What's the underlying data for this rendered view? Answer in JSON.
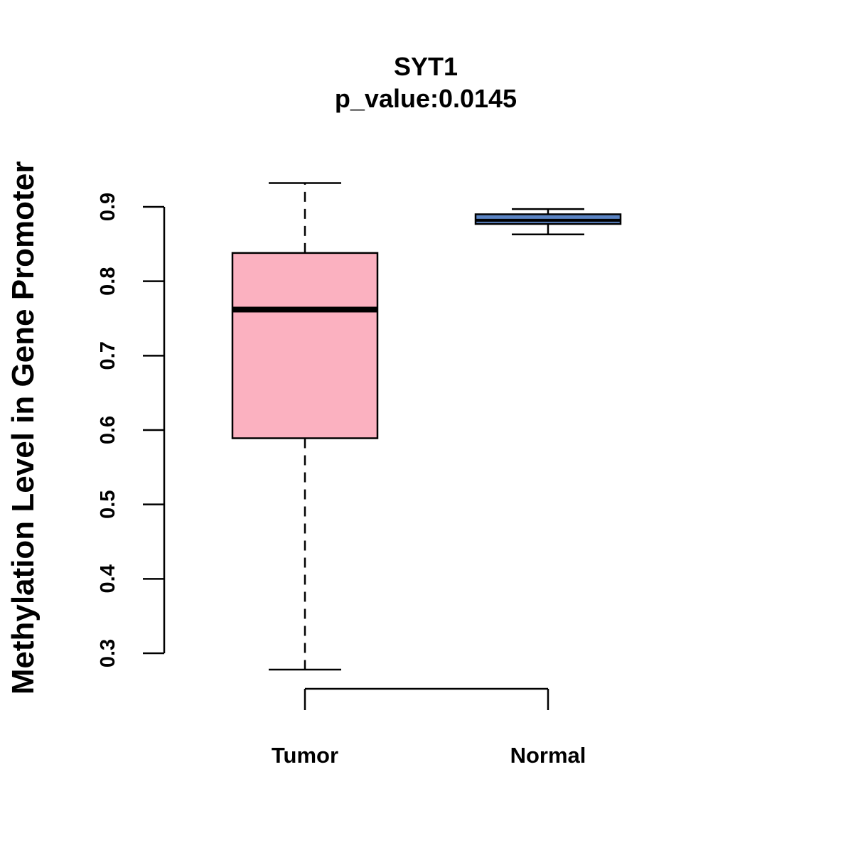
{
  "chart_data": {
    "type": "boxplot",
    "title": "SYT1",
    "subtitle": "p_value:0.0145",
    "xlabel": "",
    "ylabel": "Methylation Level in Gene Promoter",
    "ylim": [
      0.3,
      0.9
    ],
    "yticks": [
      "0.3",
      "0.4",
      "0.5",
      "0.6",
      "0.7",
      "0.8",
      "0.9"
    ],
    "categories": [
      "Tumor",
      "Normal"
    ],
    "boxes": [
      {
        "category": "Tumor",
        "whisker_low": 0.278,
        "q1": 0.589,
        "median": 0.762,
        "q3": 0.838,
        "whisker_high": 0.932,
        "color": "#fbb1c0"
      },
      {
        "category": "Normal",
        "whisker_low": 0.863,
        "q1": 0.877,
        "median": 0.882,
        "q3": 0.89,
        "whisker_high": 0.897,
        "color": "#5b84c4"
      }
    ],
    "grid": false,
    "legend": "none"
  }
}
